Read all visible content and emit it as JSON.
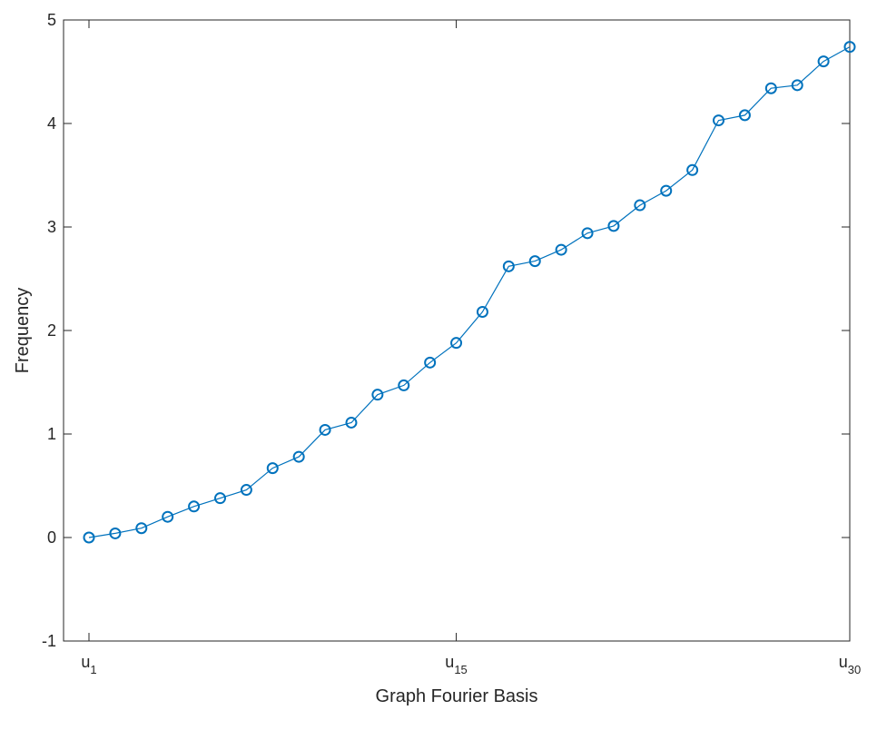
{
  "chart_data": {
    "type": "line",
    "title": "",
    "xlabel": "Graph Fourier Basis",
    "ylabel": "Frequency",
    "xlim": [
      1,
      30
    ],
    "ylim": [
      -1,
      5
    ],
    "grid": false,
    "x_ticks": [
      {
        "value": 1,
        "base": "u",
        "sub": "1"
      },
      {
        "value": 15,
        "base": "u",
        "sub": "15"
      },
      {
        "value": 30,
        "base": "u",
        "sub": "30"
      }
    ],
    "y_ticks": [
      {
        "value": -1,
        "label": "-1"
      },
      {
        "value": 0,
        "label": "0"
      },
      {
        "value": 1,
        "label": "1"
      },
      {
        "value": 2,
        "label": "2"
      },
      {
        "value": 3,
        "label": "3"
      },
      {
        "value": 4,
        "label": "4"
      },
      {
        "value": 5,
        "label": "5"
      }
    ],
    "series": [
      {
        "color": "#0072BD",
        "marker": "circle",
        "x": [
          1,
          2,
          3,
          4,
          5,
          6,
          7,
          8,
          9,
          10,
          11,
          12,
          13,
          14,
          15,
          16,
          17,
          18,
          19,
          20,
          21,
          22,
          23,
          24,
          25,
          26,
          27,
          28,
          29,
          30
        ],
        "y": [
          0.0,
          0.04,
          0.09,
          0.2,
          0.3,
          0.38,
          0.46,
          0.67,
          0.78,
          1.04,
          1.11,
          1.38,
          1.47,
          1.69,
          1.88,
          2.18,
          2.62,
          2.67,
          2.78,
          2.94,
          3.01,
          3.21,
          3.35,
          3.55,
          4.03,
          4.08,
          4.34,
          4.37,
          4.6,
          4.74
        ]
      }
    ]
  }
}
